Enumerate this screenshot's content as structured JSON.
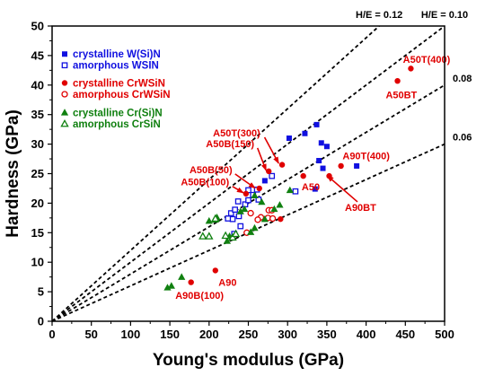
{
  "chart_data": {
    "type": "scatter",
    "title": "",
    "xlabel": "Young's modulus (GPa)",
    "ylabel": "Hardness (GPa)",
    "xlim": [
      0,
      500
    ],
    "ylim": [
      0,
      50
    ],
    "xticks": [
      0,
      50,
      100,
      150,
      200,
      250,
      300,
      350,
      400,
      450,
      500
    ],
    "yticks": [
      0,
      5,
      10,
      15,
      20,
      25,
      30,
      35,
      40,
      45,
      50
    ],
    "grid": false,
    "legend_position": "top-left",
    "ratio_lines": [
      {
        "label": "H/E = 0.12",
        "slope": 0.12
      },
      {
        "label": "H/E = 0.10",
        "slope": 0.1
      },
      {
        "label": "0.08",
        "slope": 0.08
      },
      {
        "label": "0.06",
        "slope": 0.06
      }
    ],
    "series": [
      {
        "name": "crystalline W(Si)N",
        "marker": "square-filled",
        "color": "#1010e0",
        "points": [
          [
            302,
            31
          ],
          [
            322,
            31.8
          ],
          [
            337,
            33.3
          ],
          [
            343,
            30.2
          ],
          [
            350,
            29.6
          ],
          [
            340,
            27.2
          ],
          [
            345,
            25.9
          ],
          [
            335,
            22.4
          ],
          [
            388,
            26.3
          ],
          [
            271,
            23.8
          ]
        ]
      },
      {
        "name": "amorphous WSIN",
        "marker": "square-open",
        "color": "#1010e0",
        "points": [
          [
            237,
            20.3
          ],
          [
            246,
            19.8
          ],
          [
            250,
            22.2
          ],
          [
            256,
            21.4
          ],
          [
            261,
            22.3
          ],
          [
            263,
            20.6
          ],
          [
            250,
            20.5
          ],
          [
            230,
            17.3
          ],
          [
            228,
            18.3
          ],
          [
            233,
            18.9
          ],
          [
            238,
            17.8
          ],
          [
            224,
            17.4
          ],
          [
            232,
            14.8
          ],
          [
            240,
            16.1
          ],
          [
            310,
            22.0
          ],
          [
            280,
            24.6
          ]
        ]
      },
      {
        "name": "crystalline CrWSiN",
        "marker": "circle-filled",
        "color": "#e00000",
        "points": [
          [
            457,
            42.8
          ],
          [
            440,
            40.7
          ],
          [
            293,
            26.5
          ],
          [
            276,
            25.4
          ],
          [
            264,
            22.5
          ],
          [
            247,
            21.6
          ],
          [
            320,
            24.6
          ],
          [
            353,
            24.6
          ],
          [
            368,
            26.3
          ],
          [
            291,
            17.3
          ],
          [
            208,
            8.6
          ],
          [
            177,
            6.6
          ]
        ]
      },
      {
        "name": "amorphous CrWSiN",
        "marker": "circle-open",
        "color": "#e00000",
        "points": [
          [
            266,
            17.6
          ],
          [
            262,
            17.2
          ],
          [
            275,
            17.5
          ],
          [
            276,
            18.8
          ],
          [
            280,
            18.8
          ],
          [
            281,
            17.4
          ],
          [
            248,
            15.0
          ],
          [
            253,
            18.3
          ]
        ]
      },
      {
        "name": "crystalline Cr(Si)N",
        "marker": "triangle-filled",
        "color": "#108010",
        "points": [
          [
            147,
            5.7
          ],
          [
            152,
            6.0
          ],
          [
            165,
            7.5
          ],
          [
            200,
            17.0
          ],
          [
            208,
            17.2
          ],
          [
            210,
            17.6
          ],
          [
            223,
            13.6
          ],
          [
            226,
            14.4
          ],
          [
            240,
            18.6
          ],
          [
            245,
            19.0
          ],
          [
            253,
            15.1
          ],
          [
            258,
            15.8
          ],
          [
            258,
            21.3
          ],
          [
            267,
            20.2
          ],
          [
            271,
            17.3
          ],
          [
            283,
            19.0
          ],
          [
            290,
            19.7
          ],
          [
            303,
            22.2
          ]
        ]
      },
      {
        "name": "amorphous CrSiN",
        "marker": "triangle-open",
        "color": "#108010",
        "points": [
          [
            192,
            14.4
          ],
          [
            200,
            14.4
          ],
          [
            208,
            17.4
          ],
          [
            221,
            14.5
          ],
          [
            230,
            14.2
          ],
          [
            234,
            14.8
          ]
        ]
      }
    ],
    "annotations": [
      {
        "text": "A50T(400)",
        "x": 447,
        "y": 43.8,
        "anchor": "start",
        "arrow_to": null
      },
      {
        "text": "A50BT",
        "x": 425,
        "y": 37.8,
        "anchor": "start",
        "arrow_to": null
      },
      {
        "text": "A50T(300)",
        "x": 205,
        "y": 31.3,
        "anchor": "start",
        "arrow_to": [
          292,
          26.6
        ]
      },
      {
        "text": "A50B(150)",
        "x": 196,
        "y": 29.5,
        "anchor": "start",
        "arrow_to": [
          276,
          25.4
        ]
      },
      {
        "text": "A50B(50)",
        "x": 175,
        "y": 25.1,
        "anchor": "start",
        "arrow_to": [
          262,
          22.4
        ]
      },
      {
        "text": "A50B(100)",
        "x": 164,
        "y": 23.0,
        "anchor": "start",
        "arrow_to": [
          247,
          21.6
        ]
      },
      {
        "text": "A50",
        "x": 318,
        "y": 22.2,
        "anchor": "start",
        "arrow_to": null
      },
      {
        "text": "A90T(400)",
        "x": 370,
        "y": 27.4,
        "anchor": "start",
        "arrow_to": null
      },
      {
        "text": "A90BT",
        "x": 373,
        "y": 18.7,
        "anchor": "start",
        "arrow_to": [
          354,
          24.5
        ]
      },
      {
        "text": "A90",
        "x": 212,
        "y": 6.0,
        "anchor": "start",
        "arrow_to": null
      },
      {
        "text": "A90B(100)",
        "x": 157,
        "y": 3.8,
        "anchor": "start",
        "arrow_to": null
      }
    ]
  }
}
